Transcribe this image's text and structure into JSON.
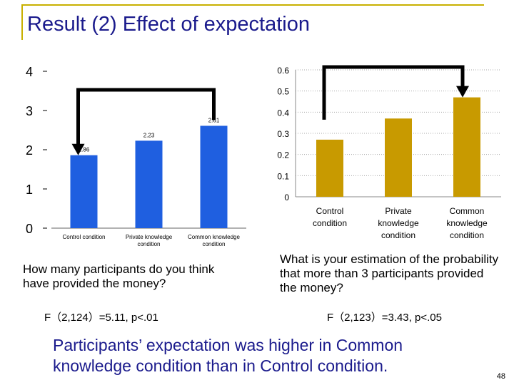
{
  "slide": {
    "title": "Result (2) Effect of expectation",
    "caption_left": "How many participants do you think have provided the money?",
    "caption_right": "What is your estimation of the probability that more than 3 participants provided the money?",
    "stat_left": "F（2,124）=5.11, p<.01",
    "stat_right": "F（2,123）=3.43, p<.05",
    "conclusion": "Participants’ expectation was higher in Common knowledge condition than in Control condition.",
    "page_number": "48",
    "accent_color": "#c8b000",
    "title_color": "#1a1a8c"
  },
  "chart_data": [
    {
      "type": "bar",
      "categories": [
        "Control condition",
        "Private knowledge condition",
        "Common knowledge condition"
      ],
      "category_lines": [
        [
          "Control condition"
        ],
        [
          "Private knowledge",
          "condition"
        ],
        [
          "Common knowledge",
          "condition"
        ]
      ],
      "values": [
        1.86,
        2.23,
        2.61
      ],
      "value_labels": [
        "1.86",
        "2.23",
        "2.61"
      ],
      "ylim": [
        0,
        4
      ],
      "yticks": [
        "0",
        "1",
        "2",
        "3",
        "4"
      ],
      "bar_color": "#1f5fe0",
      "annotation": "arrow from Common knowledge condition to Control condition"
    },
    {
      "type": "bar",
      "categories": [
        "Control condition",
        "Private knowledge condition",
        "Common knowledge condition"
      ],
      "category_lines": [
        [
          "Control",
          "condition"
        ],
        [
          "Private",
          "knowledge",
          "condition"
        ],
        [
          "Common",
          "knowledge",
          "condition"
        ]
      ],
      "values": [
        0.27,
        0.37,
        0.47
      ],
      "ylim": [
        0,
        0.6
      ],
      "yticks": [
        "0",
        "0.1",
        "0.2",
        "0.3",
        "0.4",
        "0.5",
        "0.6"
      ],
      "bar_color": "#c89a00",
      "annotation": "arrow from Control condition to Common knowledge condition"
    }
  ]
}
